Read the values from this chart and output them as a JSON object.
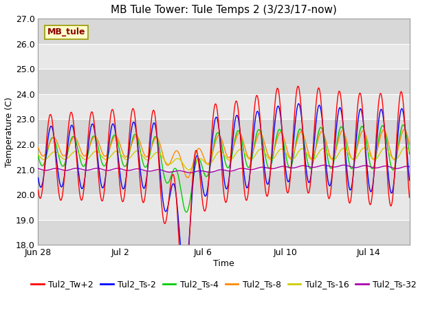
{
  "title": "MB Tule Tower: Tule Temps 2 (3/23/17-now)",
  "xlabel": "Time",
  "ylabel": "Temperature (C)",
  "ylim": [
    18.0,
    27.0
  ],
  "yticks": [
    18.0,
    19.0,
    20.0,
    21.0,
    22.0,
    23.0,
    24.0,
    25.0,
    26.0,
    27.0
  ],
  "xtick_labels": [
    "Jun 28",
    "Jul 2",
    "Jul 6",
    "Jul 10",
    "Jul 14"
  ],
  "xtick_positions": [
    0,
    4,
    8,
    12,
    16
  ],
  "xlim": [
    0,
    18
  ],
  "watertemp_color": "#ff0000",
  "ts2_color": "#0000ff",
  "ts4_color": "#00cc00",
  "ts8_color": "#ff8800",
  "ts16_color": "#cccc00",
  "ts32_color": "#aa00aa",
  "legend_labels": [
    "Tul2_Tw+2",
    "Tul2_Ts-2",
    "Tul2_Ts-4",
    "Tul2_Ts-8",
    "Tul2_Ts-16",
    "Tul2_Ts-32"
  ],
  "annotation_text": "MB_tule",
  "background_color": "#ffffff",
  "plot_bg_color": "#e8e8e8",
  "grid_color": "#ffffff",
  "band_colors": [
    "#d8d8d8",
    "#e8e8e8"
  ],
  "title_fontsize": 11,
  "axis_fontsize": 9,
  "tick_fontsize": 9,
  "legend_fontsize": 9,
  "linewidth": 1.0
}
